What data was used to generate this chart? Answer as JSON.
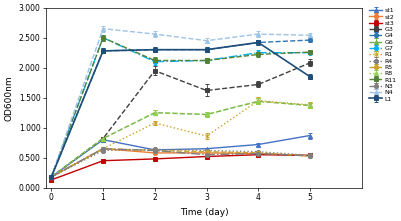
{
  "x": [
    0,
    1,
    2,
    3,
    4,
    5
  ],
  "series": {
    "st1": {
      "values": [
        0.18,
        0.8,
        0.63,
        0.65,
        0.72,
        0.87
      ],
      "errors": [
        0.01,
        0.02,
        0.02,
        0.02,
        0.03,
        0.05
      ],
      "color": "#4472C4",
      "linestyle": "-",
      "marker": "^",
      "markersize": 3,
      "linewidth": 1.0
    },
    "st2": {
      "values": [
        0.18,
        0.65,
        0.58,
        0.58,
        0.57,
        0.53
      ],
      "errors": [
        0.01,
        0.02,
        0.02,
        0.01,
        0.01,
        0.01
      ],
      "color": "#ED7D31",
      "linestyle": "-",
      "marker": "o",
      "markersize": 3,
      "linewidth": 1.0
    },
    "st3": {
      "values": [
        0.13,
        0.45,
        0.48,
        0.52,
        0.55,
        0.54
      ],
      "errors": [
        0.01,
        0.02,
        0.02,
        0.02,
        0.02,
        0.01
      ],
      "color": "#C00000",
      "linestyle": "-",
      "marker": "s",
      "markersize": 3,
      "linewidth": 1.0
    },
    "G3": {
      "values": [
        0.18,
        0.82,
        1.95,
        1.62,
        1.72,
        2.08
      ],
      "errors": [
        0.01,
        0.03,
        0.08,
        0.1,
        0.05,
        0.06
      ],
      "color": "#404040",
      "linestyle": "--",
      "marker": "s",
      "markersize": 3,
      "linewidth": 1.0
    },
    "G4": {
      "values": [
        0.18,
        2.28,
        2.3,
        2.3,
        2.42,
        2.46
      ],
      "errors": [
        0.01,
        0.04,
        0.04,
        0.04,
        0.04,
        0.04
      ],
      "color": "#2E75B6",
      "linestyle": "--",
      "marker": "o",
      "markersize": 3,
      "linewidth": 1.0
    },
    "G6": {
      "values": [
        0.18,
        0.82,
        1.25,
        1.22,
        1.44,
        1.37
      ],
      "errors": [
        0.01,
        0.03,
        0.04,
        0.04,
        0.05,
        0.04
      ],
      "color": "#70AD47",
      "linestyle": "--",
      "marker": "^",
      "markersize": 3,
      "linewidth": 1.0
    },
    "G7": {
      "values": [
        0.18,
        2.5,
        2.1,
        2.12,
        2.25,
        2.25
      ],
      "errors": [
        0.01,
        0.05,
        0.05,
        0.04,
        0.04,
        0.03
      ],
      "color": "#00B0F0",
      "linestyle": "-.",
      "marker": "o",
      "markersize": 3,
      "linewidth": 1.0
    },
    "R1": {
      "values": [
        0.18,
        0.65,
        1.08,
        0.86,
        1.45,
        1.38
      ],
      "errors": [
        0.01,
        0.03,
        0.04,
        0.05,
        0.06,
        0.05
      ],
      "color": "#C9A227",
      "linestyle": ":",
      "marker": "x",
      "markersize": 3,
      "linewidth": 1.0
    },
    "R4": {
      "values": [
        0.18,
        0.62,
        0.64,
        0.62,
        0.6,
        0.54
      ],
      "errors": [
        0.01,
        0.02,
        0.02,
        0.02,
        0.01,
        0.01
      ],
      "color": "#808080",
      "linestyle": ":",
      "marker": "o",
      "markersize": 3,
      "linewidth": 1.0
    },
    "R5": {
      "values": [
        0.18,
        0.65,
        0.62,
        0.6,
        0.58,
        0.53
      ],
      "errors": [
        0.01,
        0.02,
        0.02,
        0.02,
        0.01,
        0.01
      ],
      "color": "#C9A227",
      "linestyle": "--",
      "marker": "o",
      "markersize": 3,
      "linewidth": 1.0
    },
    "R8": {
      "values": [
        0.18,
        0.82,
        1.25,
        1.22,
        1.44,
        1.37
      ],
      "errors": [
        0.01,
        0.03,
        0.04,
        0.04,
        0.05,
        0.04
      ],
      "color": "#92D050",
      "linestyle": ":",
      "marker": "^",
      "markersize": 3,
      "linewidth": 1.0
    },
    "R11": {
      "values": [
        0.18,
        2.5,
        2.12,
        2.12,
        2.22,
        2.26
      ],
      "errors": [
        0.01,
        0.05,
        0.05,
        0.04,
        0.04,
        0.03
      ],
      "color": "#548235",
      "linestyle": "--",
      "marker": "s",
      "markersize": 3,
      "linewidth": 1.0
    },
    "N3": {
      "values": [
        0.18,
        0.65,
        0.62,
        0.55,
        0.57,
        0.53
      ],
      "errors": [
        0.01,
        0.02,
        0.02,
        0.02,
        0.01,
        0.01
      ],
      "color": "#7F7F7F",
      "linestyle": "-.",
      "marker": "o",
      "markersize": 3,
      "linewidth": 1.0
    },
    "N4": {
      "values": [
        0.18,
        2.65,
        2.56,
        2.45,
        2.56,
        2.54
      ],
      "errors": [
        0.01,
        0.05,
        0.05,
        0.04,
        0.05,
        0.04
      ],
      "color": "#9DC3E6",
      "linestyle": "--",
      "marker": "^",
      "markersize": 3,
      "linewidth": 1.0
    },
    "L1": {
      "values": [
        0.18,
        2.28,
        2.3,
        2.3,
        2.42,
        1.85
      ],
      "errors": [
        0.01,
        0.04,
        0.04,
        0.04,
        0.04,
        0.04
      ],
      "color": "#1F4E79",
      "linestyle": "-",
      "marker": "s",
      "markersize": 3,
      "linewidth": 1.2
    }
  },
  "xlabel": "Time (day)",
  "ylabel": "OD600nm",
  "xlim": [
    -0.1,
    6
  ],
  "ylim": [
    0,
    3.0
  ],
  "yticks": [
    0.0,
    0.5,
    1.0,
    1.5,
    2.0,
    2.5,
    3.0
  ],
  "xticks": [
    0,
    1,
    2,
    3,
    4,
    5
  ],
  "legend_order": [
    "st1",
    "st2",
    "st3",
    "G3",
    "G4",
    "G6",
    "G7",
    "R1",
    "R4",
    "R5",
    "R8",
    "R11",
    "N3",
    "N4",
    "L1"
  ],
  "figsize": [
    4.01,
    2.21
  ],
  "dpi": 100
}
